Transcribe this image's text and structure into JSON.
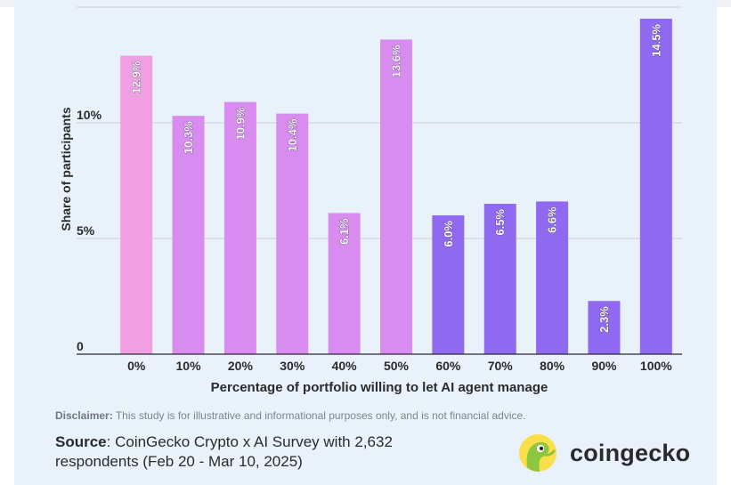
{
  "chart_data": {
    "type": "bar",
    "categories": [
      "0%",
      "10%",
      "20%",
      "30%",
      "40%",
      "50%",
      "60%",
      "70%",
      "80%",
      "90%",
      "100%"
    ],
    "values": [
      12.9,
      10.3,
      10.9,
      10.4,
      6.1,
      13.6,
      6.0,
      6.5,
      6.6,
      2.3,
      14.5
    ],
    "value_labels": [
      "12.9%",
      "10.3%",
      "10.9%",
      "10.4%",
      "6.1%",
      "13.6%",
      "6.0%",
      "6.5%",
      "6.6%",
      "2.3%",
      "14.5%"
    ],
    "bar_colors": [
      "#f0a0e2",
      "#d98cef",
      "#d98cef",
      "#d98cef",
      "#d98cef",
      "#d98cef",
      "#8f6af0",
      "#8f6af0",
      "#8f6af0",
      "#8f6af0",
      "#8f6af0"
    ],
    "xlabel": "Percentage of portfolio willing to let AI agent manage",
    "ylabel": "Share of participants",
    "ytick_values": [
      0,
      5,
      10
    ],
    "ytick_labels": [
      "0",
      "5%",
      "10%"
    ],
    "ylim": [
      0,
      15
    ],
    "grid": true
  },
  "footer": {
    "disclaimer_label": "Disclaimer:",
    "disclaimer_text": " This study is for illustrative and informational purposes only, and is not financial advice.",
    "source_label": "Source",
    "source_text": ": CoinGecko Crypto x AI Survey with 2,632 respondents (Feb 20 - Mar 10, 2025)"
  },
  "brand": {
    "name": "coingecko",
    "logo_icon": "gecko-logo-icon",
    "colors": {
      "logo_circle": "#8dc63f",
      "logo_inner": "#f9e04b"
    }
  }
}
